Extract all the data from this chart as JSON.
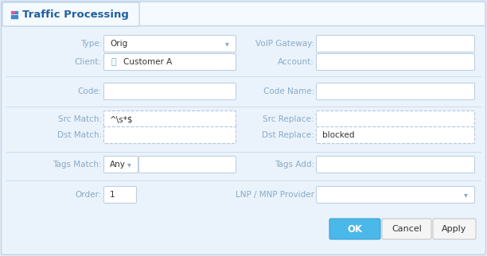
{
  "title": "Traffic Processing",
  "bg_outer": "#dce9f5",
  "bg_form": "#eaf3fb",
  "tab_bg": "#f5faff",
  "tab_border": "#c0d4e8",
  "field_border": "#c0d0e0",
  "field_bg": "#ffffff",
  "field_bg_dashed": "#f8fbfe",
  "button_ok_bg": "#4ab8e8",
  "button_ok_text": "OK",
  "button_cancel_text": "Cancel",
  "button_apply_text": "Apply",
  "button_bg": "#f5f5f5",
  "button_border": "#c8c8c8",
  "label_color": "#8aaac8",
  "text_color": "#333333",
  "title_color": "#2060a0",
  "icon_color": "#5bafd6",
  "sep_color": "#ccdcec",
  "figw": 6.12,
  "figh": 3.22,
  "dpi": 100
}
